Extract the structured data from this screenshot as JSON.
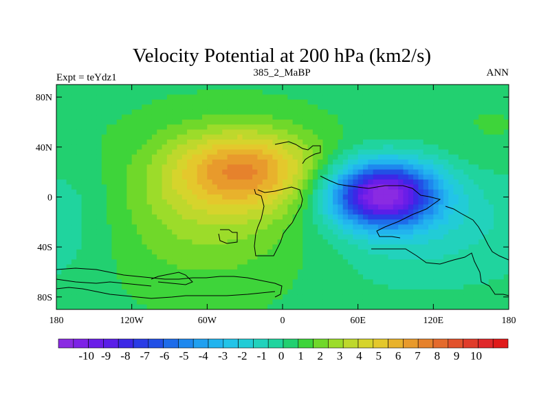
{
  "chart_data": {
    "type": "heatmap",
    "title": "Velocity Potential at 200 hPa (km2/s)",
    "left_label": "Expt = teYdz1",
    "center_label": "385_2_MaBP",
    "right_label": "ANN",
    "x_range": [
      -180,
      180
    ],
    "y_range": [
      -90,
      90
    ],
    "x_ticks": [
      {
        "value": -180,
        "label": "180"
      },
      {
        "value": -120,
        "label": "120W"
      },
      {
        "value": -60,
        "label": "60W"
      },
      {
        "value": 0,
        "label": "0"
      },
      {
        "value": 60,
        "label": "60E"
      },
      {
        "value": 120,
        "label": "120E"
      },
      {
        "value": 180,
        "label": "180"
      }
    ],
    "y_ticks": [
      {
        "value": 80,
        "label": "80N"
      },
      {
        "value": 40,
        "label": "40N"
      },
      {
        "value": 0,
        "label": "0"
      },
      {
        "value": -40,
        "label": "40S"
      },
      {
        "value": -80,
        "label": "80S"
      }
    ],
    "colorbar": {
      "labels": [
        "-10",
        "-9",
        "-8",
        "-7",
        "-6",
        "-5",
        "-4",
        "-3",
        "-2",
        "-1",
        "0",
        "1",
        "2",
        "3",
        "4",
        "5",
        "6",
        "7",
        "8",
        "9",
        "10"
      ],
      "colors": [
        "#8a2be2",
        "#7d22e6",
        "#6a1ee8",
        "#5a1ee8",
        "#3c28e6",
        "#2a3ce6",
        "#2250e6",
        "#1e6cea",
        "#1e88ee",
        "#20a0f0",
        "#22b4ee",
        "#22c4e8",
        "#22ccd6",
        "#22d2bc",
        "#20d49e",
        "#22d070",
        "#3ed43a",
        "#70d82a",
        "#9cdc2a",
        "#bed82c",
        "#d6d42c",
        "#e4c82c",
        "#e8b22c",
        "#e89a2c",
        "#e6822c",
        "#e46a2c",
        "#e2522c",
        "#e03c2a",
        "#e0282a",
        "#e01a1a"
      ]
    },
    "field_background": 0.5,
    "centers": [
      {
        "lon": -30,
        "lat": 22,
        "sx": 40,
        "sy": 22,
        "amp": 4.6
      },
      {
        "lon": -60,
        "lat": -10,
        "sx": 55,
        "sy": 40,
        "amp": 1.8
      },
      {
        "lon": 80,
        "lat": 2,
        "sx": 30,
        "sy": 18,
        "amp": -9.8
      },
      {
        "lon": 110,
        "lat": -25,
        "sx": 55,
        "sy": 35,
        "amp": -1.4
      },
      {
        "lon": 170,
        "lat": 45,
        "sx": 30,
        "sy": 25,
        "amp": 0.4
      },
      {
        "lon": -170,
        "lat": -5,
        "sx": 30,
        "sy": 40,
        "amp": -0.6
      }
    ]
  }
}
